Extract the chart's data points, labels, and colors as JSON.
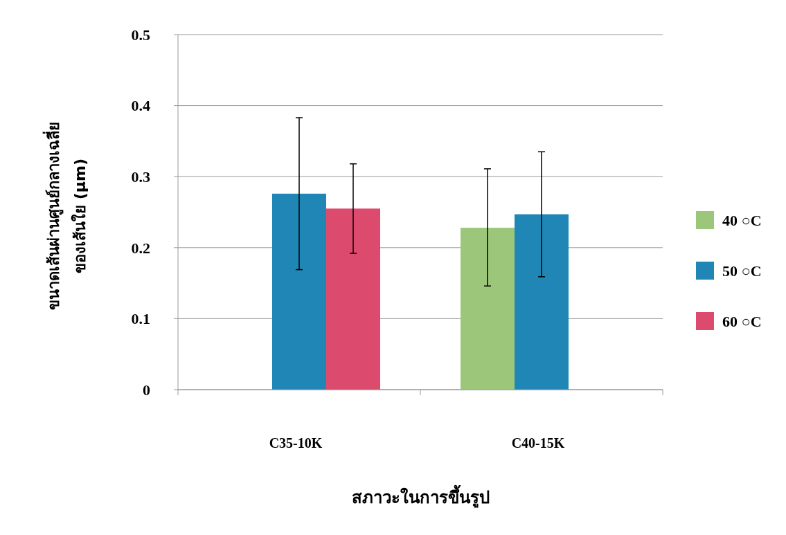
{
  "chart_data": {
    "type": "bar",
    "xlabel": "สภาวะในการขึ้นรูป",
    "ylabel": "ขนาดเส้นผ่านศูนย์กลางเฉลี่ย\nของเส้นใย (µm)",
    "categories": [
      "C35-10K",
      "C40-15K"
    ],
    "series": [
      {
        "name": "40 ○C",
        "color": "#9cc77a",
        "values": [
          null,
          0.228
        ],
        "errors": [
          null,
          [
            0.146,
            0.311
          ]
        ]
      },
      {
        "name": "50 ○C",
        "color": "#1f86b5",
        "values": [
          0.276,
          0.247
        ],
        "errors": [
          [
            0.169,
            0.383
          ],
          [
            0.159,
            0.335
          ]
        ]
      },
      {
        "name": "60 ○C",
        "color": "#dc4a6e",
        "values": [
          0.255,
          null
        ],
        "errors": [
          [
            0.192,
            0.318
          ],
          null
        ]
      }
    ],
    "ylim": [
      0,
      0.5
    ],
    "yticks": [
      {
        "value": 0,
        "label": "0"
      },
      0.1,
      0.2,
      0.3,
      0.4,
      0.5
    ],
    "grid": "y",
    "legend": "right"
  }
}
